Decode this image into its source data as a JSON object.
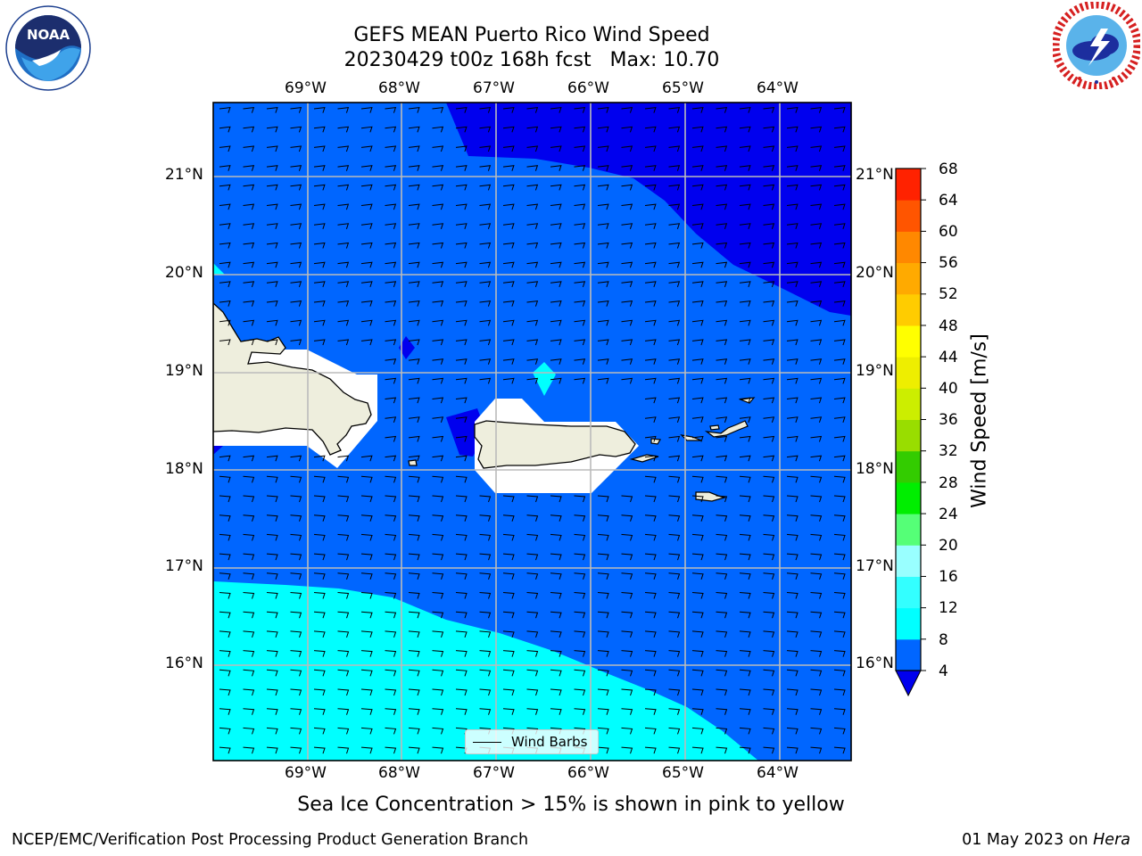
{
  "header": {
    "title_line1": "GEFS MEAN Puerto Rico Wind Speed",
    "title_line2": "20230429 t00z 168h fcst   Max: 10.70"
  },
  "map": {
    "lon_labels": [
      "69°W",
      "68°W",
      "67°W",
      "66°W",
      "65°W",
      "64°W"
    ],
    "lat_labels": [
      "21°N",
      "20°N",
      "19°N",
      "18°N",
      "17°N",
      "16°N"
    ],
    "lon_range": [
      -70.0,
      -63.25
    ],
    "lat_range": [
      15.0,
      21.75
    ],
    "field": "wind speed",
    "features": [
      "Hispaniola (east)",
      "Puerto Rico",
      "Virgin Islands",
      "Mona Island",
      "Saint Croix"
    ]
  },
  "legend": {
    "label": "Wind Barbs"
  },
  "colorbar": {
    "label": "Wind Speed [m/s]",
    "ticks": [
      "4",
      "8",
      "12",
      "16",
      "20",
      "24",
      "28",
      "32",
      "36",
      "40",
      "44",
      "48",
      "52",
      "56",
      "60",
      "64",
      "68"
    ],
    "colors": [
      "#0066ff",
      "#00ffff",
      "#33ffff",
      "#99ffff",
      "#55ff77",
      "#00ee00",
      "#33cc00",
      "#99dd00",
      "#ccee00",
      "#eeee00",
      "#ffff00",
      "#ffcc00",
      "#ffaa00",
      "#ff8800",
      "#ff5500",
      "#ff2200",
      "#ff0000"
    ],
    "under_color": "#0000ee"
  },
  "note": "Sea Ice Concentration > 15% is shown in pink to yellow",
  "footer": {
    "left": "NCEP/EMC/Verification Post Processing Product Generation Branch",
    "right_prefix": "01 May 2023 on ",
    "right_host": "Hera"
  },
  "logos": {
    "noaa_text": "NOAA",
    "noaa_ring": "NATIONAL OCEANIC AND ATMOSPHERIC ADMINISTRATION · U.S. DEPARTMENT OF COMMERCE",
    "nws_ring": "NATIONAL WEATHER SERVICE"
  }
}
